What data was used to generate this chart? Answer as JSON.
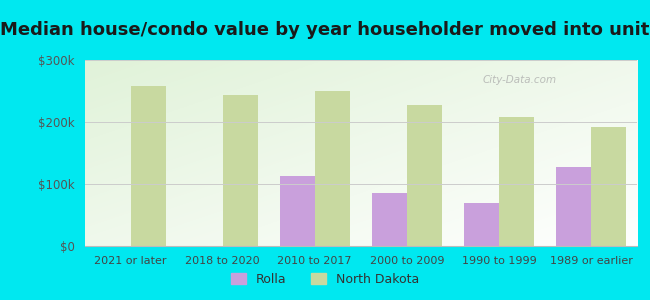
{
  "title": "Median house/condo value by year householder moved into unit",
  "categories": [
    "2021 or later",
    "2018 to 2020",
    "2010 to 2017",
    "2000 to 2009",
    "1990 to 1999",
    "1989 or earlier"
  ],
  "rolla_values": [
    null,
    null,
    113000,
    85000,
    70000,
    128000
  ],
  "nd_values": [
    258000,
    243000,
    250000,
    228000,
    208000,
    192000
  ],
  "rolla_color": "#c9a0dc",
  "nd_color": "#c8d9a0",
  "background_outer": "#00e8f0",
  "ylim": [
    0,
    300000
  ],
  "yticks": [
    0,
    100000,
    200000,
    300000
  ],
  "ytick_labels": [
    "$0",
    "$100k",
    "$200k",
    "$300k"
  ],
  "bar_width": 0.38,
  "legend_labels": [
    "Rolla",
    "North Dakota"
  ],
  "title_fontsize": 13,
  "watermark": "City-Data.com"
}
